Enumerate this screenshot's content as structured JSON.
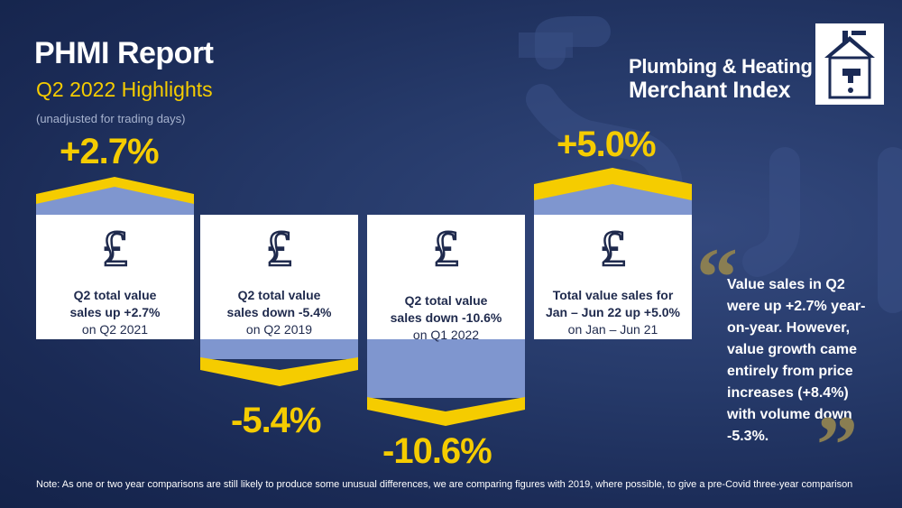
{
  "header": {
    "title": "PHMI Report",
    "subtitle": "Q2 2022 Highlights",
    "note": "(unadjusted for trading days)"
  },
  "logo": {
    "line1": "Plumbing & Heating",
    "line2": "Merchant Index"
  },
  "cards": [
    {
      "change": "+2.7%",
      "line1": "Q2 total value",
      "line2": "sales up +2.7%",
      "line3": "on Q2 2021"
    },
    {
      "change": "-5.4%",
      "line1": "Q2 total value",
      "line2": "sales down -5.4%",
      "line3": "on Q2 2019"
    },
    {
      "change": "-10.6%",
      "line1": "Q2 total value",
      "line2": "sales down -10.6%",
      "line3": "on Q1 2022"
    },
    {
      "change": "+5.0%",
      "line1": "Total value sales for",
      "line2": "Jan – Jun 22 up +5.0%",
      "line3": "on Jan – Jun 21"
    }
  ],
  "currency_symbol": "£",
  "quote": {
    "open_mark": "“",
    "close_mark": "”",
    "text": "Value sales in Q2 were up +2.7% year-on-year. However, value growth came entirely from price increases (+8.4%) with volume down -5.3%."
  },
  "footnote": "Note: As one or two year comparisons are still likely to produce some unusual differences, we are comparing figures with 2019, where possible, to give a pre-Covid three-year comparison",
  "colors": {
    "background": "#1a2a55",
    "accent_yellow": "#f5cc00",
    "band_blue": "#7f96cf",
    "card": "#ffffff"
  }
}
